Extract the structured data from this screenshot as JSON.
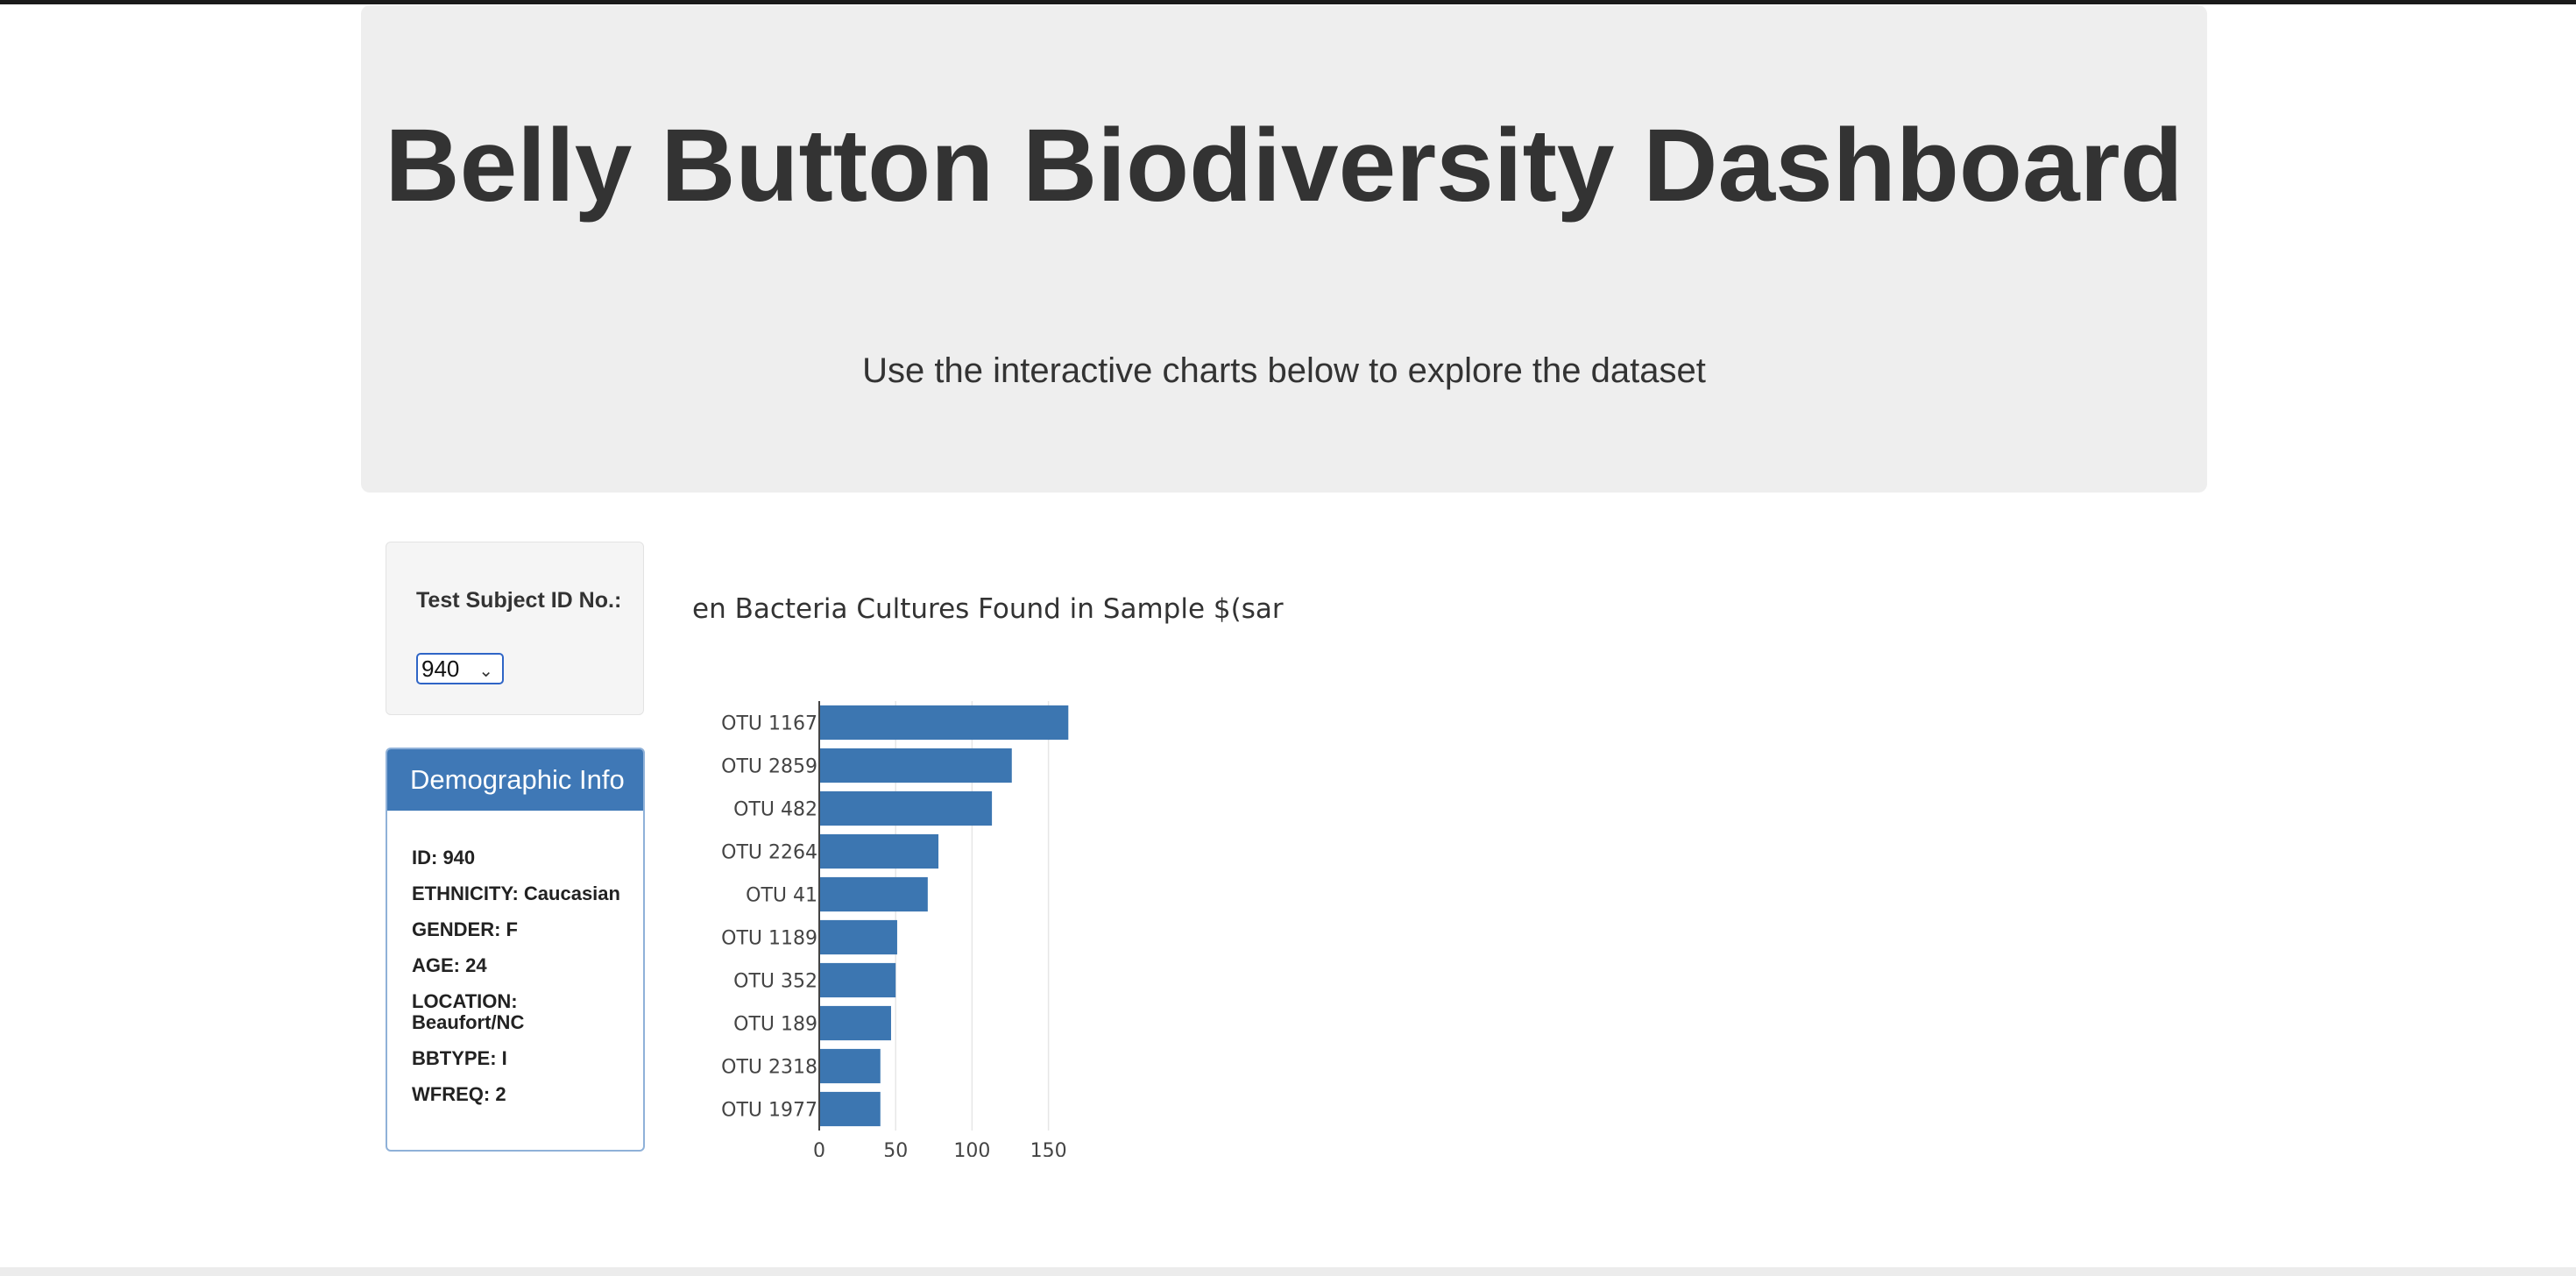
{
  "header": {
    "title": "Belly Button Biodiversity Dashboard",
    "subtitle": "Use the interactive charts below to explore the dataset"
  },
  "selector": {
    "label": "Test Subject ID No.:",
    "selected": "940"
  },
  "demographics": {
    "heading": "Demographic Info",
    "rows": [
      "ID: 940",
      "ETHNICITY: Caucasian",
      "GENDER: F",
      "AGE: 24",
      "LOCATION: Beaufort/NC",
      "BBTYPE: I",
      "WFREQ: 2"
    ]
  },
  "colors": {
    "bar": "#3c76b1",
    "header_bg": "#eeeeee",
    "panel_heading": "#3f78b6"
  },
  "chart_data": {
    "type": "bar",
    "orientation": "horizontal",
    "title": "Top Ten Bacteria Cultures Found in Sample $(sample)",
    "title_visible": "en Bacteria Cultures Found in Sample $(sar",
    "categories": [
      "OTU 1167",
      "OTU 2859",
      "OTU 482",
      "OTU 2264",
      "OTU 41",
      "OTU 1189",
      "OTU 352",
      "OTU 189",
      "OTU 2318",
      "OTU 1977"
    ],
    "values": [
      163,
      126,
      113,
      78,
      71,
      51,
      50,
      47,
      40,
      40
    ],
    "xticks": [
      0,
      50,
      100,
      150
    ],
    "xlim": [
      0,
      172
    ],
    "grid": true,
    "xlabel": "",
    "ylabel": ""
  }
}
